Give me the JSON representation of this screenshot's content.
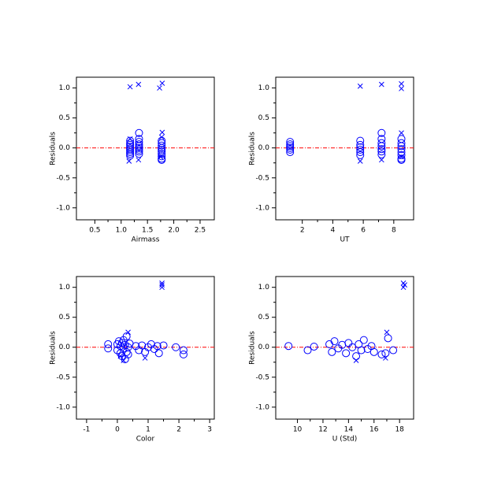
{
  "chart_data": [
    {
      "type": "scatter",
      "x_label": "Airmass",
      "y_label": "Residuals",
      "xlim": [
        0.15,
        2.77
      ],
      "ylim": [
        -1.2,
        1.18
      ],
      "xticks": [
        0.5,
        {
          "value": 1,
          "label": "1.0"
        },
        1.5,
        {
          "value": 2,
          "label": "2.0"
        },
        2.5
      ],
      "yticks": [
        {
          "value": -1,
          "label": "-1.0"
        },
        -0.5,
        {
          "value": 0,
          "label": "0.0"
        },
        0.5,
        {
          "value": 1,
          "label": "1.0"
        }
      ],
      "reference_line": {
        "value": 0,
        "color": "#ff0000"
      },
      "series": [
        {
          "marker": "o",
          "color": "#0000ff",
          "x": [
            1.17,
            1.17,
            1.17,
            1.17,
            1.17,
            1.17,
            1.17,
            1.17,
            1.17,
            1.34,
            1.34,
            1.34,
            1.34,
            1.34,
            1.34,
            1.34,
            1.34,
            1.34,
            1.77,
            1.77,
            1.77,
            1.77,
            1.77,
            1.77,
            1.77,
            1.77,
            1.77,
            1.77
          ],
          "values": [
            0.12,
            0.08,
            0.05,
            0.02,
            -0.01,
            -0.04,
            -0.07,
            -0.1,
            -0.13,
            0.25,
            0.15,
            0.1,
            0.06,
            0.03,
            0,
            -0.03,
            -0.06,
            -0.1,
            0.12,
            0.08,
            0.04,
            0,
            -0.03,
            -0.06,
            -0.1,
            -0.14,
            -0.18,
            -0.2
          ]
        },
        {
          "marker": "x",
          "color": "#0000ff",
          "x": [
            1.17,
            1.33,
            1.73,
            1.78,
            1.15,
            1.33,
            1.78,
            1.75,
            1.17,
            1.77
          ],
          "values": [
            1.02,
            1.06,
            1.0,
            1.08,
            -0.22,
            -0.2,
            0.26,
            -0.15,
            0.15,
            0.18
          ]
        }
      ]
    },
    {
      "type": "scatter",
      "x_label": "UT",
      "y_label": "Residuals",
      "xlim": [
        0.26,
        9.3
      ],
      "ylim": [
        -1.2,
        1.18
      ],
      "xticks": [
        2,
        4,
        6,
        8
      ],
      "yticks": [
        {
          "value": -1,
          "label": "-1.0"
        },
        -0.5,
        {
          "value": 0,
          "label": "0.0"
        },
        0.5,
        {
          "value": 1,
          "label": "1.0"
        }
      ],
      "reference_line": {
        "value": 0,
        "color": "#ff0000"
      },
      "series": [
        {
          "marker": "o",
          "color": "#0000ff",
          "x": [
            1.2,
            1.2,
            1.2,
            1.2,
            1.2,
            1.2,
            5.8,
            5.8,
            5.8,
            5.8,
            5.8,
            5.8,
            7.2,
            7.2,
            7.2,
            7.2,
            7.2,
            7.2,
            7.2,
            8.5,
            8.5,
            8.5,
            8.5,
            8.5,
            8.5,
            8.5,
            8.5
          ],
          "values": [
            0.1,
            0.06,
            0.03,
            0,
            -0.03,
            -0.07,
            0.12,
            0.05,
            0.01,
            -0.03,
            -0.07,
            -0.12,
            0.25,
            0.15,
            0.08,
            0.03,
            -0.02,
            -0.06,
            -0.11,
            0.15,
            0.08,
            0.03,
            -0.02,
            -0.07,
            -0.12,
            -0.18,
            -0.2
          ]
        },
        {
          "marker": "x",
          "color": "#0000ff",
          "x": [
            5.8,
            7.2,
            8.5,
            8.5,
            5.8,
            7.2,
            8.5,
            8.5
          ],
          "values": [
            1.03,
            1.06,
            1.07,
            0.99,
            -0.22,
            -0.2,
            0.25,
            -0.15
          ]
        }
      ]
    },
    {
      "type": "scatter",
      "x_label": "Color",
      "y_label": "Residuals",
      "xlim": [
        -1.33,
        3.15
      ],
      "ylim": [
        -1.2,
        1.18
      ],
      "xticks": [
        -1,
        0,
        1,
        2,
        3
      ],
      "yticks": [
        {
          "value": -1,
          "label": "-1.0"
        },
        -0.5,
        {
          "value": 0,
          "label": "0.0"
        },
        0.5,
        {
          "value": 1,
          "label": "1.0"
        }
      ],
      "reference_line": {
        "value": 0,
        "color": "#ff0000"
      },
      "series": [
        {
          "marker": "o",
          "color": "#0000ff",
          "x": [
            0.0,
            0.0,
            0.05,
            0.1,
            0.1,
            0.15,
            0.15,
            0.2,
            0.2,
            0.25,
            0.25,
            0.3,
            0.3,
            0.35,
            0.35,
            0.4,
            -0.3,
            -0.3,
            0.6,
            0.7,
            0.8,
            0.9,
            1.0,
            1.1,
            1.2,
            1.3,
            1.35,
            1.5,
            1.9,
            2.15,
            2.15
          ],
          "values": [
            0.05,
            -0.05,
            0.1,
            0.02,
            -0.1,
            0.07,
            -0.15,
            0.12,
            -0.02,
            0.04,
            -0.2,
            0.18,
            -0.08,
            0.0,
            -0.12,
            0.06,
            0.05,
            -0.02,
            0.02,
            -0.05,
            0.03,
            -0.08,
            0.0,
            0.05,
            -0.03,
            0.02,
            -0.1,
            0.03,
            0.0,
            -0.05,
            -0.12
          ]
        },
        {
          "marker": "x",
          "color": "#0000ff",
          "x": [
            1.45,
            1.45,
            1.45,
            0.35,
            0.2,
            0.9,
            0.1
          ],
          "values": [
            1.07,
            1.0,
            1.04,
            0.25,
            -0.22,
            -0.18,
            -0.15
          ]
        }
      ]
    },
    {
      "type": "scatter",
      "x_label": "U (Std)",
      "y_label": "Residuals",
      "xlim": [
        8.3,
        19.1
      ],
      "ylim": [
        -1.2,
        1.18
      ],
      "xticks": [
        10,
        12,
        14,
        16,
        18
      ],
      "yticks": [
        {
          "value": -1,
          "label": "-1.0"
        },
        -0.5,
        {
          "value": 0,
          "label": "0.0"
        },
        0.5,
        {
          "value": 1,
          "label": "1.0"
        }
      ],
      "reference_line": {
        "value": 0,
        "color": "#ff0000"
      },
      "series": [
        {
          "marker": "o",
          "color": "#0000ff",
          "x": [
            9.3,
            10.8,
            11.3,
            12.5,
            12.7,
            12.9,
            13.2,
            13.5,
            13.8,
            14.0,
            14.3,
            14.6,
            14.8,
            15.0,
            15.2,
            15.5,
            15.8,
            16.0,
            16.6,
            16.9,
            17.1,
            17.5
          ],
          "values": [
            0.02,
            -0.05,
            0.01,
            0.05,
            -0.08,
            0.1,
            -0.02,
            0.04,
            -0.1,
            0.07,
            0.0,
            -0.15,
            0.05,
            -0.05,
            0.12,
            -0.03,
            0.02,
            -0.08,
            -0.12,
            -0.1,
            0.15,
            -0.05
          ]
        },
        {
          "marker": "x",
          "color": "#0000ff",
          "x": [
            18.3,
            18.3,
            18.4,
            17.0,
            14.6,
            16.9
          ],
          "values": [
            1.07,
            1.0,
            1.04,
            0.25,
            -0.22,
            -0.18
          ]
        }
      ]
    }
  ]
}
